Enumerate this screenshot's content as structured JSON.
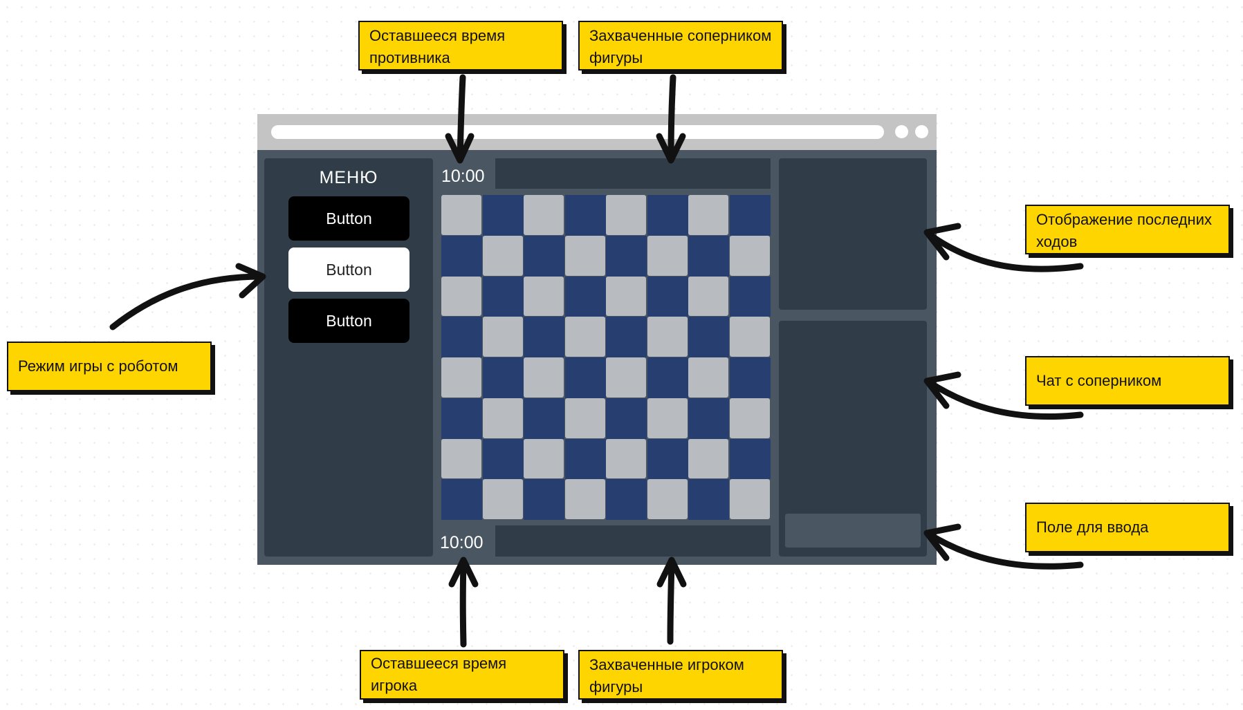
{
  "annotations": {
    "opponent_time": "Оставшееся время\nпротивника",
    "opponent_captured": "Захваченные соперником\nфигуры",
    "last_moves": "Отображение последних\nходов",
    "chat": "Чат с соперником",
    "input_field": "Поле для ввода",
    "robot_mode": "Режим игры с роботом",
    "player_time": "Оставшееся время игрока",
    "player_captured": "Захваченные игроком\nфигуры"
  },
  "menu": {
    "title": "МЕНЮ",
    "buttons": [
      {
        "label": "Button",
        "style": "dark"
      },
      {
        "label": "Button",
        "style": "light"
      },
      {
        "label": "Button",
        "style": "dark"
      }
    ]
  },
  "timers": {
    "opponent": "10:00",
    "player": "10:00"
  },
  "board": {
    "rows": 8,
    "cols": 8
  },
  "colors": {
    "note_bg": "#ffd500",
    "board_dark": "#263f70",
    "board_light": "#b8bcc0",
    "panel": "#303d48",
    "app_bg": "#4a5661",
    "titlebar": "#c4c4c4"
  }
}
